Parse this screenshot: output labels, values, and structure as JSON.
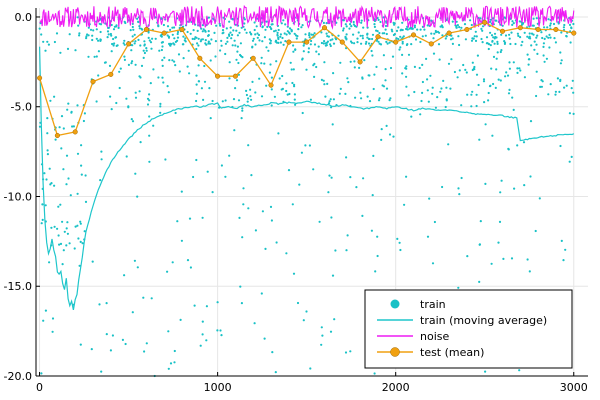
{
  "chart_data": {
    "type": "scatter",
    "title": "",
    "xlabel": "",
    "ylabel": "",
    "xlim": [
      -20,
      3080
    ],
    "ylim": [
      -20.0,
      0.5
    ],
    "grid": true,
    "legend_position": "bottom-right",
    "x_ticks": [
      {
        "value": 0,
        "label": "0"
      },
      {
        "value": 1000,
        "label": "1000"
      },
      {
        "value": 2000,
        "label": "2000"
      },
      {
        "value": 3000,
        "label": "3000"
      }
    ],
    "y_ticks": [
      {
        "value": 0.0,
        "label": "0.0"
      },
      {
        "value": -5.0,
        "label": "-5.0"
      },
      {
        "value": -10.0,
        "label": "-10.0"
      },
      {
        "value": -15.0,
        "label": "-15.0"
      },
      {
        "value": -20.0,
        "label": "-20.0"
      }
    ],
    "colors": {
      "train": "#18c1c6",
      "train_ma": "#1fc6cb",
      "noise": "#ee1cf3",
      "test": "#f0a010"
    },
    "series": [
      {
        "name": "train",
        "kind": "scatter",
        "generator": {
          "x_min": 0,
          "x_max": 3000,
          "count": 1400,
          "seed": 7
        }
      },
      {
        "name": "train (moving average)",
        "kind": "line",
        "x": [
          0,
          10,
          20,
          30,
          40,
          50,
          60,
          70,
          80,
          90,
          100,
          110,
          120,
          130,
          140,
          150,
          160,
          170,
          180,
          190,
          200,
          210,
          220,
          230,
          240,
          250,
          260,
          280,
          300,
          330,
          360,
          400,
          450,
          500,
          550,
          600,
          650,
          700,
          750,
          800,
          850,
          900,
          950,
          1000,
          1020,
          1050,
          1100,
          1150,
          1200,
          1250,
          1300,
          1350,
          1400,
          1450,
          1500,
          1550,
          1600,
          1650,
          1700,
          1750,
          1800,
          1850,
          1900,
          1950,
          2000,
          2050,
          2100,
          2150,
          2200,
          2250,
          2300,
          2350,
          2400,
          2450,
          2500,
          2550,
          2600,
          2650,
          2680,
          2700,
          2750,
          2800,
          2850,
          2900,
          2950,
          3000
        ],
        "y": [
          -1.5,
          -6.0,
          -9.5,
          -11.5,
          -12.5,
          -13.4,
          -13.0,
          -12.3,
          -12.7,
          -13.5,
          -14.0,
          -14.5,
          -14.2,
          -15.0,
          -15.3,
          -14.8,
          -15.5,
          -16.0,
          -15.7,
          -16.2,
          -15.8,
          -15.3,
          -14.6,
          -14.0,
          -13.3,
          -12.6,
          -12.0,
          -11.3,
          -10.5,
          -9.6,
          -8.9,
          -8.1,
          -7.4,
          -6.8,
          -6.3,
          -5.9,
          -5.6,
          -5.4,
          -5.2,
          -5.1,
          -5.0,
          -5.0,
          -4.9,
          -4.8,
          -5.1,
          -5.0,
          -5.1,
          -4.9,
          -5.0,
          -4.9,
          -4.8,
          -4.85,
          -4.75,
          -4.8,
          -4.7,
          -4.8,
          -4.85,
          -5.0,
          -4.9,
          -5.0,
          -5.1,
          -5.1,
          -5.0,
          -5.1,
          -5.0,
          -5.1,
          -5.2,
          -5.1,
          -5.15,
          -5.2,
          -5.2,
          -5.25,
          -5.3,
          -5.4,
          -5.4,
          -5.5,
          -5.5,
          -5.6,
          -5.6,
          -6.9,
          -6.8,
          -6.7,
          -6.65,
          -6.6,
          -6.55,
          -6.5
        ]
      },
      {
        "name": "noise",
        "kind": "line",
        "generator": {
          "x_min": 0,
          "x_max": 3000,
          "step": 5,
          "center": 0.0,
          "amplitude": 0.6,
          "seed": 11
        }
      },
      {
        "name": "test (mean)",
        "kind": "line+markers",
        "x": [
          0,
          100,
          200,
          300,
          400,
          500,
          600,
          700,
          800,
          900,
          1000,
          1100,
          1200,
          1300,
          1400,
          1500,
          1600,
          1700,
          1800,
          1900,
          2000,
          2100,
          2200,
          2300,
          2400,
          2500,
          2600,
          2700,
          2800,
          2900,
          3000
        ],
        "y": [
          -3.4,
          -6.6,
          -6.4,
          -3.6,
          -3.2,
          -1.5,
          -0.7,
          -0.9,
          -0.7,
          -2.3,
          -3.3,
          -3.3,
          -2.3,
          -3.8,
          -1.4,
          -1.4,
          -0.6,
          -1.4,
          -2.5,
          -1.1,
          -1.4,
          -1.0,
          -1.5,
          -0.9,
          -0.7,
          -0.3,
          -0.8,
          -0.6,
          -0.7,
          -0.7,
          -0.9
        ]
      }
    ],
    "legend": [
      {
        "label": "train",
        "marker": "dot"
      },
      {
        "label": "train (moving average)",
        "marker": "line"
      },
      {
        "label": "noise",
        "marker": "line"
      },
      {
        "label": "test (mean)",
        "marker": "line-dot"
      }
    ]
  }
}
